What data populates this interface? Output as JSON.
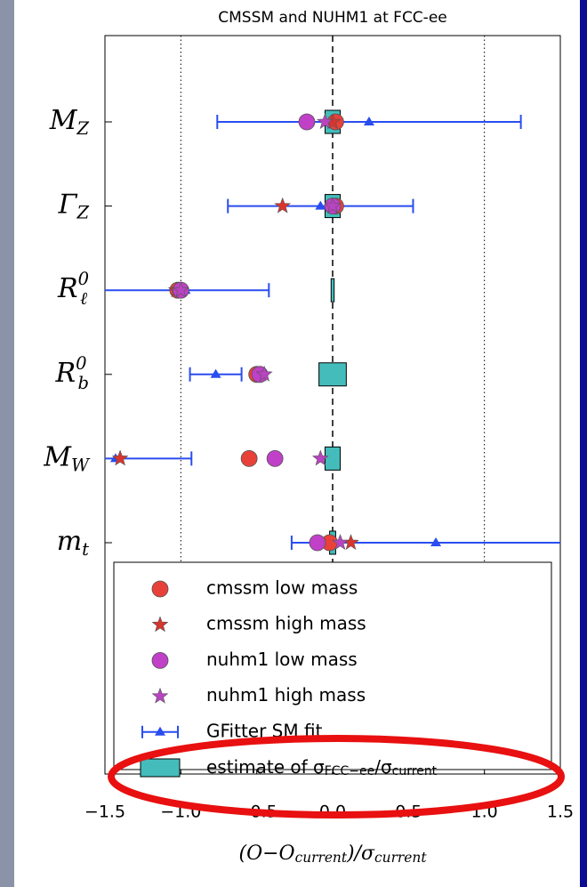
{
  "chart_data": {
    "type": "pull",
    "title": "CMSSM and NUHM1 at FCC-ee",
    "categories": [
      {
        "base": "M",
        "sub": "Z"
      },
      {
        "base": "Γ",
        "sub": "Z"
      },
      {
        "base": "R",
        "sub": "ℓ",
        "sup": "0"
      },
      {
        "base": "R",
        "sub": "b",
        "sup": "0"
      },
      {
        "base": "M",
        "sub": "W"
      },
      {
        "base": "m",
        "sub": "t"
      }
    ],
    "series": [
      {
        "name": "cmssm low mass",
        "color": "#e8413a",
        "marker": "circle",
        "values": [
          0.02,
          0.02,
          -1.02,
          -0.5,
          -0.55,
          -0.02
        ]
      },
      {
        "name": "cmssm high mass",
        "color": "#d8352e",
        "marker": "star",
        "values": [
          0.0,
          -0.33,
          -1.03,
          -0.47,
          -1.4,
          0.12
        ]
      },
      {
        "name": "nuhm1 low mass",
        "color": "#c040c8",
        "marker": "circle",
        "values": [
          -0.17,
          0.0,
          -1.0,
          -0.48,
          -0.38,
          -0.1
        ]
      },
      {
        "name": "nuhm1 high mass",
        "color": "#b844c0",
        "marker": "star",
        "values": [
          -0.05,
          0.0,
          -1.0,
          -0.45,
          -0.08,
          0.05
        ]
      },
      {
        "name": "GFitter SM fit",
        "color": "#2a4df0",
        "marker": "triangle",
        "values": [
          0.24,
          -0.08,
          -0.97,
          -0.77,
          -1.43,
          0.68
        ],
        "errors": [
          1.0,
          0.61,
          0.55,
          0.17,
          0.5,
          0.95
        ]
      },
      {
        "name": [
          {
            "t": "estimate of σ"
          },
          {
            "sub": "FCC−ee"
          },
          {
            "t": "/σ"
          },
          {
            "sub": "current"
          }
        ],
        "color": "#45bcbc",
        "marker": "box",
        "values": [
          0.05,
          0.05,
          0.01,
          0.09,
          0.05,
          0.02
        ]
      }
    ],
    "xlim": [
      -1.5,
      1.5
    ],
    "xticks": [
      {
        "value": -1.5,
        "label": "−1.5"
      },
      {
        "value": -1.0,
        "label": "−1.0"
      },
      {
        "value": -0.5,
        "label": "−0.5"
      },
      {
        "value": 0.0,
        "label": "0.0"
      },
      0.5,
      {
        "value": 1.0,
        "label": "1.0"
      },
      1.5
    ],
    "xlabel": [
      {
        "t": "(O−O"
      },
      {
        "sub": "current"
      },
      {
        "t": ")/σ"
      },
      {
        "sub": "current"
      }
    ]
  }
}
